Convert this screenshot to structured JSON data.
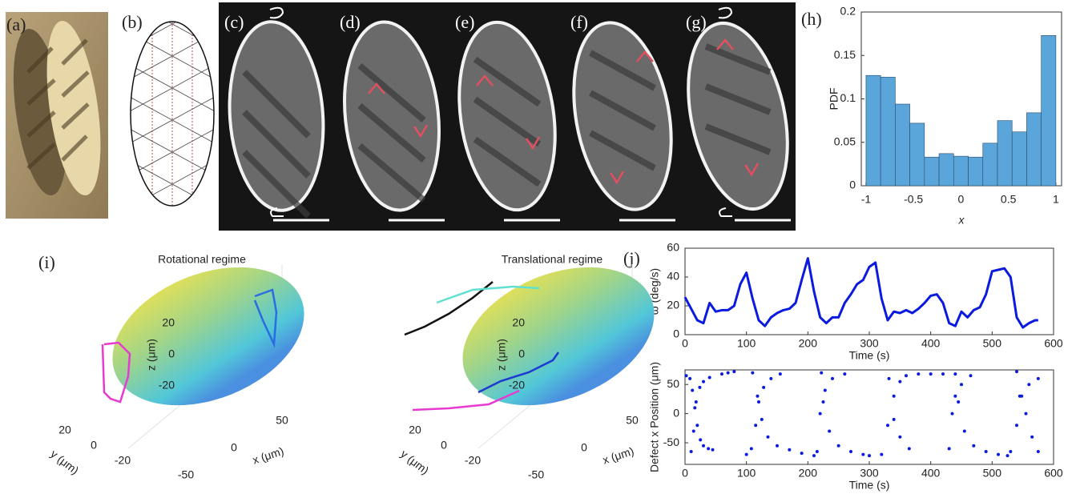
{
  "panel_labels": [
    "(a)",
    "(b)",
    "(c)",
    "(d)",
    "(e)",
    "(f)",
    "(g)",
    "(h)",
    "(i)",
    "(j)"
  ],
  "chart_data": [
    {
      "type": "histogram",
      "ylabel": "PDF",
      "xlabel": "x",
      "color": "#5aa5d9",
      "bins": [
        -1,
        -0.8462,
        -0.6923,
        -0.5385,
        -0.3846,
        -0.2308,
        -0.0769,
        0.0769,
        0.2308,
        0.3846,
        0.5385,
        0.6923,
        0.8462,
        1
      ],
      "values": [
        0.127,
        0.125,
        0.094,
        0.072,
        0.033,
        0.037,
        0.034,
        0.033,
        0.049,
        0.075,
        0.062,
        0.084,
        0.173
      ],
      "xlim": [
        -1.05,
        1.06
      ],
      "ylim": [
        0,
        0.2
      ],
      "xticks": [
        -1,
        -0.5,
        0,
        0.5,
        1
      ],
      "yticks": [
        0,
        0.05,
        0.1,
        0.15,
        0.2
      ]
    },
    {
      "type": "line",
      "ylabel": "ω (deg/s)",
      "xlabel": "Time (s)",
      "color": "#0a1adf",
      "x": [
        0,
        10,
        20,
        30,
        40,
        50,
        60,
        70,
        80,
        90,
        100,
        110,
        120,
        130,
        140,
        150,
        160,
        170,
        180,
        190,
        200,
        210,
        220,
        230,
        240,
        250,
        260,
        270,
        280,
        290,
        300,
        310,
        320,
        330,
        340,
        350,
        360,
        370,
        380,
        390,
        400,
        410,
        420,
        430,
        440,
        450,
        460,
        470,
        480,
        490,
        500,
        510,
        520,
        530,
        540,
        550,
        560,
        570,
        575
      ],
      "values": [
        26,
        18,
        10,
        8,
        22,
        16,
        17,
        17,
        20,
        35,
        43,
        25,
        10,
        6,
        12,
        15,
        17,
        18,
        22,
        38,
        53,
        30,
        12,
        8,
        12,
        12,
        22,
        28,
        35,
        38,
        47,
        50,
        25,
        10,
        16,
        15,
        17,
        15,
        18,
        22,
        27,
        28,
        22,
        8,
        6,
        16,
        12,
        17,
        19,
        28,
        44,
        45,
        46,
        40,
        12,
        5,
        8,
        10,
        10
      ],
      "xlim": [
        0,
        600
      ],
      "ylim": [
        0,
        60
      ],
      "xticks": [
        0,
        100,
        200,
        300,
        400,
        500,
        600
      ],
      "yticks": [
        0,
        20,
        40,
        60
      ]
    },
    {
      "type": "scatter",
      "ylabel": "Defect x Position (μm)",
      "xlabel": "Time (s)",
      "color": "#0a1adf",
      "x": [
        2,
        8,
        12,
        16,
        20,
        25,
        30,
        38,
        45,
        10,
        14,
        18,
        24,
        30,
        40,
        60,
        70,
        80,
        100,
        108,
        115,
        120,
        128,
        140,
        155,
        110,
        118,
        125,
        135,
        150,
        170,
        190,
        210,
        215,
        220,
        228,
        240,
        260,
        222,
        225,
        235,
        250,
        270,
        290,
        300,
        320,
        330,
        340,
        350,
        360,
        380,
        400,
        420,
        332,
        340,
        350,
        365,
        430,
        435,
        440,
        450,
        465,
        440,
        445,
        455,
        470,
        490,
        510,
        525,
        530,
        540,
        548,
        560,
        575,
        540,
        545,
        555,
        565,
        575
      ],
      "values": [
        65,
        60,
        40,
        10,
        -20,
        -45,
        -55,
        -60,
        -62,
        -65,
        -30,
        20,
        45,
        55,
        62,
        68,
        70,
        72,
        -70,
        -60,
        -20,
        20,
        45,
        60,
        68,
        70,
        30,
        -10,
        -40,
        -55,
        -62,
        -68,
        -72,
        -65,
        0,
        40,
        60,
        68,
        70,
        20,
        -30,
        -55,
        -65,
        -70,
        -72,
        -70,
        -20,
        30,
        55,
        65,
        68,
        68,
        68,
        60,
        -10,
        -40,
        -60,
        -60,
        0,
        30,
        50,
        65,
        68,
        20,
        -30,
        -55,
        -65,
        -70,
        -72,
        -65,
        -20,
        30,
        50,
        60,
        72,
        30,
        0,
        -40,
        -65
      ],
      "xlim": [
        0,
        600
      ],
      "ylim": [
        -87,
        75
      ],
      "xticks": [
        0,
        100,
        200,
        300,
        400,
        500,
        600
      ],
      "yticks": [
        -50,
        0,
        50
      ]
    },
    {
      "type": "surface3d",
      "title": "Rotational regime",
      "zlabel": "z (μm)",
      "ylabel": "y (μm)",
      "xlabel": "x (μm)",
      "zticks": [
        -20,
        0,
        20
      ],
      "yticks": [
        -20,
        0,
        20
      ],
      "xticks": [
        -50,
        0,
        50
      ]
    },
    {
      "type": "surface3d",
      "title": "Translational regime",
      "zlabel": "z (μm)",
      "ylabel": "y (μm)",
      "xlabel": "x (μm)",
      "zticks": [
        -20,
        0,
        20
      ],
      "yticks": [
        -20,
        0,
        20
      ],
      "xticks": [
        -50,
        0,
        50
      ]
    }
  ]
}
